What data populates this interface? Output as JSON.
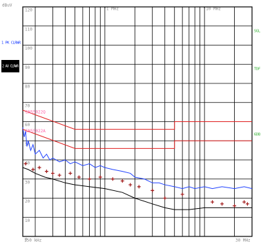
{
  "chart_data": {
    "type": "line",
    "y_label": "dBuV",
    "log_x": true,
    "grid": true,
    "xlim": [
      0.15,
      30
    ],
    "xticks": [
      {
        "value": 0.15,
        "label": "150 kHz"
      },
      {
        "value": 1,
        "label": "1 MHz"
      },
      {
        "value": 10,
        "label": "10 MHz"
      },
      {
        "value": 30,
        "label": "30 MHz"
      }
    ],
    "xgrid": [
      0.2,
      0.3,
      0.4,
      0.5,
      0.6,
      0.7,
      0.8,
      0.9,
      1,
      2,
      3,
      4,
      5,
      6,
      7,
      8,
      9,
      10,
      20
    ],
    "ylim": [
      0,
      120
    ],
    "yticks": [
      0,
      10,
      20,
      30,
      40,
      50,
      60,
      70,
      80,
      90,
      100,
      110,
      120
    ],
    "side_labels": [
      "SGL",
      "TDF",
      "6DB"
    ],
    "series": [
      {
        "name": "1 PK CLRWR",
        "color": "#2244ff",
        "x": [
          0.15,
          0.155,
          0.16,
          0.165,
          0.17,
          0.18,
          0.19,
          0.2,
          0.22,
          0.24,
          0.26,
          0.28,
          0.3,
          0.35,
          0.4,
          0.45,
          0.5,
          0.6,
          0.7,
          0.8,
          0.9,
          1,
          1.2,
          1.5,
          1.8,
          2,
          2.5,
          3,
          3.5,
          4,
          5,
          6,
          7,
          8,
          10,
          12,
          15,
          20,
          25,
          30
        ],
        "values": [
          57,
          52,
          55,
          47,
          50,
          45,
          48,
          43,
          45,
          41,
          43,
          40,
          41,
          39,
          40,
          38,
          39,
          37,
          38,
          36,
          37,
          36,
          35,
          34,
          33,
          31,
          30,
          28,
          28,
          27,
          26,
          25,
          26,
          25,
          26,
          25,
          26,
          25,
          26,
          25
        ]
      },
      {
        "name": "2 AV CLRWR",
        "color": "#000000",
        "x": [
          0.15,
          0.17,
          0.2,
          0.25,
          0.3,
          0.4,
          0.5,
          0.7,
          1,
          1.5,
          2,
          3,
          4,
          5,
          7,
          10,
          15,
          20,
          30
        ],
        "values": [
          36,
          35,
          33,
          31,
          30,
          28,
          27,
          26,
          25,
          23,
          20,
          17,
          15,
          14,
          14,
          15,
          15,
          15,
          15
        ]
      },
      {
        "name": "EN55022Q",
        "color": "#e02020",
        "x": [
          0.15,
          0.5,
          5,
          5,
          30
        ],
        "values": [
          66,
          56,
          56,
          60,
          60
        ]
      },
      {
        "name": "EN55022A",
        "color": "#e02020",
        "x": [
          0.15,
          0.5,
          5,
          5,
          30
        ],
        "values": [
          56,
          46,
          46,
          50,
          50
        ]
      },
      {
        "type": "scatter",
        "color": "#a01818",
        "x": [
          0.16,
          0.19,
          0.22,
          0.26,
          0.3,
          0.35,
          0.45,
          0.55,
          0.7,
          0.9,
          1.2,
          1.5,
          1.8,
          2.2,
          3,
          4,
          6,
          12,
          15,
          20,
          25,
          27
        ],
        "values": [
          38,
          35,
          36,
          34,
          33,
          32,
          33,
          31,
          30,
          31,
          30,
          29,
          27,
          26,
          24,
          20,
          22,
          18,
          17,
          16,
          18,
          17
        ]
      }
    ]
  }
}
